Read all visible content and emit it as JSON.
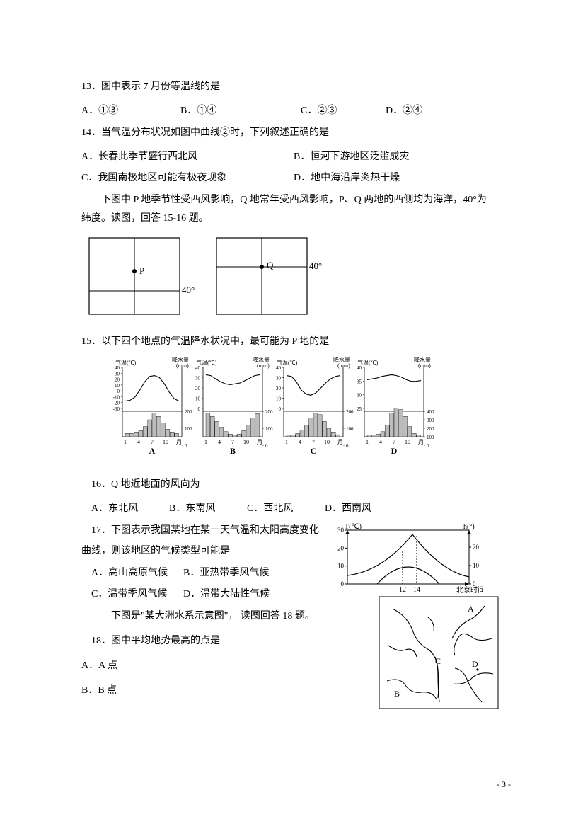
{
  "q13": {
    "stem": "13．图中表示 7 月份等温线的是",
    "opts": {
      "A": "A．①③",
      "B": "B．①④",
      "C": "C．②③",
      "D": "D．②④"
    }
  },
  "q14": {
    "stem": "14．当气温分布状况如图中曲线②时，下列叙述正确的是",
    "optA": "A．长春此季节盛行西北风",
    "optB": "B．恒河下游地区泛滥成灾",
    "optC": "C．我国南极地区可能有极夜现象",
    "optD": "D．地中海沿岸炎热干燥"
  },
  "intro15": "下图中 P 地季节性受西风影响，Q 地常年受西风影响，P、Q 两地的西侧均为海洋，40°为纬度。读图，回答 15-16 题。",
  "pq": {
    "p_label": "P",
    "q_label": "Q",
    "lat": "40°"
  },
  "q15": {
    "stem": "15．以下四个地点的气温降水状况中，最可能为 P 地的是"
  },
  "climate": {
    "panels": [
      "A",
      "B",
      "C",
      "D"
    ],
    "temp_axis_label": "气温(℃)",
    "precip_axis_label": "降水量\n(mm)",
    "x_ticks": [
      "1",
      "4",
      "7",
      "10",
      "月"
    ],
    "A": {
      "temp_ticks": [
        "40",
        "30",
        "20",
        "10",
        "0",
        "-10",
        "-20",
        "-30"
      ],
      "precip_ticks": [
        "200",
        "100",
        "0"
      ],
      "temp_y": [
        0.82,
        0.8,
        0.72,
        0.55,
        0.35,
        0.22,
        0.2,
        0.25,
        0.4,
        0.6,
        0.76,
        0.82
      ],
      "bars": [
        0.1,
        0.1,
        0.12,
        0.18,
        0.3,
        0.5,
        0.7,
        0.6,
        0.4,
        0.22,
        0.12,
        0.1
      ]
    },
    "B": {
      "temp_ticks": [
        "40",
        "30",
        "20",
        "10",
        "0"
      ],
      "precip_ticks": [
        "200",
        "100",
        "0"
      ],
      "temp_y": [
        0.18,
        0.2,
        0.28,
        0.35,
        0.4,
        0.42,
        0.4,
        0.38,
        0.32,
        0.26,
        0.2,
        0.18
      ],
      "bars": [
        0.7,
        0.6,
        0.45,
        0.28,
        0.15,
        0.08,
        0.05,
        0.08,
        0.18,
        0.35,
        0.55,
        0.68
      ]
    },
    "C": {
      "temp_ticks": [
        "40",
        "30",
        "20",
        "10",
        "0"
      ],
      "precip_ticks": [
        "200",
        "100",
        "0"
      ],
      "temp_y": [
        0.2,
        0.22,
        0.35,
        0.55,
        0.65,
        0.68,
        0.62,
        0.5,
        0.38,
        0.28,
        0.22,
        0.2
      ],
      "bars": [
        0.05,
        0.05,
        0.1,
        0.2,
        0.35,
        0.55,
        0.7,
        0.65,
        0.45,
        0.25,
        0.12,
        0.06
      ]
    },
    "D": {
      "temp_ticks": [
        "40",
        "35",
        "30",
        "25"
      ],
      "precip_ticks": [
        "400",
        "300",
        "200",
        "100",
        "0"
      ],
      "temp_y": [
        0.3,
        0.28,
        0.26,
        0.22,
        0.2,
        0.18,
        0.2,
        0.24,
        0.3,
        0.34,
        0.34,
        0.32
      ],
      "bars": [
        0.05,
        0.05,
        0.08,
        0.15,
        0.35,
        0.7,
        0.85,
        0.8,
        0.6,
        0.3,
        0.1,
        0.05
      ]
    }
  },
  "q16": {
    "stem": "16．Q 地近地面的风向为",
    "opts": {
      "A": "A．东北风",
      "B": "B．东南风",
      "C": "C．西北风",
      "D": "D．西南风"
    }
  },
  "q17": {
    "line1": "17．下图表示我国某地在某一天气温和太阳高度变化",
    "line2": "曲线，则该地区的气候类型可能是",
    "optA": "A．高山高原气候",
    "optB": "B．亚热带季风气候",
    "optC": "C．温带季风气候",
    "optD": "D．温带大陆性气候",
    "chart": {
      "y1_label": "T(℃)",
      "y2_label": "h(°)",
      "y1_ticks": [
        "30",
        "20",
        "10",
        "0"
      ],
      "y2_ticks": [
        "20",
        "10",
        "0"
      ],
      "x_ticks": [
        "12",
        "14"
      ],
      "x_axis_label": "北京时间"
    }
  },
  "intro18": "下图是\"某大洲水系示意图\"，  读图回答 18 题。",
  "q18": {
    "stem": "18．图中平均地势最高的点是",
    "optA": "A．A 点",
    "optB": "B．B 点"
  },
  "river_labels": [
    "A",
    "B",
    "C",
    "D"
  ],
  "page_number": "- 3 -",
  "colors": {
    "text": "#000000",
    "bg": "#ffffff",
    "stroke": "#000000",
    "bar": "#bdbdbd"
  }
}
